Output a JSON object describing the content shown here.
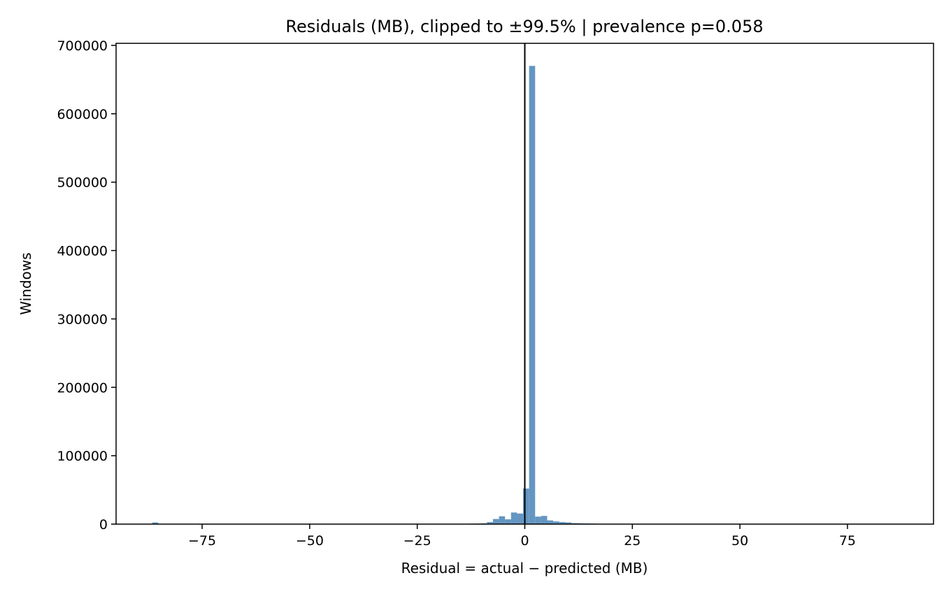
{
  "chart_data": {
    "type": "bar",
    "title": "Residuals (MB), clipped to ±99.5% | prevalence p=0.058",
    "xlabel": "Residual = actual − predicted (MB)",
    "ylabel": "Windows",
    "xlim": [
      -95,
      95
    ],
    "ylim": [
      0,
      703000
    ],
    "grid": false,
    "x_ticks": [
      {
        "value": -75,
        "label": "−75"
      },
      {
        "value": -50,
        "label": "−50"
      },
      {
        "value": -25,
        "label": "−25"
      },
      {
        "value": 0,
        "label": "0"
      },
      {
        "value": 25,
        "label": "25"
      },
      {
        "value": 50,
        "label": "50"
      },
      {
        "value": 75,
        "label": "75"
      }
    ],
    "y_ticks": [
      {
        "value": 0,
        "label": "0"
      },
      {
        "value": 100000,
        "label": "100000"
      },
      {
        "value": 200000,
        "label": "200000"
      },
      {
        "value": 300000,
        "label": "300000"
      },
      {
        "value": 400000,
        "label": "400000"
      },
      {
        "value": 500000,
        "label": "500000"
      },
      {
        "value": 600000,
        "label": "600000"
      },
      {
        "value": 700000,
        "label": "700000"
      }
    ],
    "bar_color": "#4f88b9",
    "reference_line": {
      "x": 0,
      "color": "#000000"
    },
    "bins": [
      {
        "x0": -86.6,
        "x1": -85.2,
        "count": 2500
      },
      {
        "x0": -13.0,
        "x1": -11.6,
        "count": 700
      },
      {
        "x0": -11.6,
        "x1": -10.2,
        "count": 900
      },
      {
        "x0": -10.2,
        "x1": -8.8,
        "count": 1200
      },
      {
        "x0": -8.8,
        "x1": -7.4,
        "count": 3000
      },
      {
        "x0": -7.4,
        "x1": -6.0,
        "count": 7500
      },
      {
        "x0": -6.0,
        "x1": -4.6,
        "count": 11500
      },
      {
        "x0": -4.6,
        "x1": -3.2,
        "count": 7000
      },
      {
        "x0": -3.2,
        "x1": -1.8,
        "count": 17000
      },
      {
        "x0": -1.8,
        "x1": -0.4,
        "count": 15500
      },
      {
        "x0": -0.4,
        "x1": 1.0,
        "count": 52000
      },
      {
        "x0": 1.0,
        "x1": 2.4,
        "count": 670000
      },
      {
        "x0": 2.4,
        "x1": 3.8,
        "count": 11000
      },
      {
        "x0": 3.8,
        "x1": 5.2,
        "count": 12000
      },
      {
        "x0": 5.2,
        "x1": 6.6,
        "count": 5500
      },
      {
        "x0": 6.6,
        "x1": 8.0,
        "count": 4000
      },
      {
        "x0": 8.0,
        "x1": 9.4,
        "count": 3000
      },
      {
        "x0": 9.4,
        "x1": 10.8,
        "count": 2500
      },
      {
        "x0": 10.8,
        "x1": 12.2,
        "count": 1500
      },
      {
        "x0": 12.2,
        "x1": 13.6,
        "count": 1200
      },
      {
        "x0": 13.6,
        "x1": 15.0,
        "count": 1000
      },
      {
        "x0": 15.0,
        "x1": 16.4,
        "count": 800
      }
    ]
  }
}
